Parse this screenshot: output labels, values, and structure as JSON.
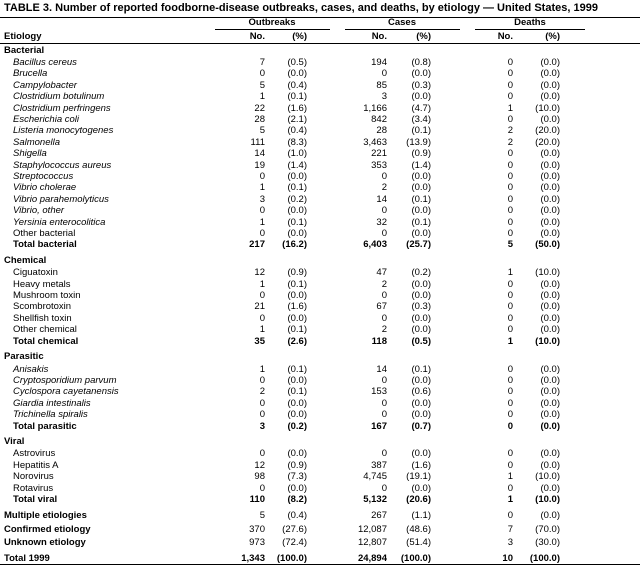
{
  "title": "TABLE 3. Number of reported foodborne-disease outbreaks, cases, and deaths, by etiology — United States, 1999",
  "header": {
    "groups": [
      "Outbreaks",
      "Cases",
      "Deaths"
    ],
    "columns": [
      "Etiology",
      "No.",
      "(%)",
      "No.",
      "(%)",
      "No.",
      "(%)"
    ]
  },
  "sections": [
    {
      "title": "Bacterial",
      "rows": [
        {
          "label": "Bacillus cereus",
          "italic": true,
          "cells": [
            "7",
            "(0.5)",
            "194",
            "(0.8)",
            "0",
            "(0.0)"
          ]
        },
        {
          "label": "Brucella",
          "italic": true,
          "cells": [
            "0",
            "(0.0)",
            "0",
            "(0.0)",
            "0",
            "(0.0)"
          ]
        },
        {
          "label": "Campylobacter",
          "italic": true,
          "cells": [
            "5",
            "(0.4)",
            "85",
            "(0.3)",
            "0",
            "(0.0)"
          ]
        },
        {
          "label": "Clostridium botulinum",
          "italic": true,
          "cells": [
            "1",
            "(0.1)",
            "3",
            "(0.0)",
            "0",
            "(0.0)"
          ]
        },
        {
          "label": "Clostridium perfringens",
          "italic": true,
          "cells": [
            "22",
            "(1.6)",
            "1,166",
            "(4.7)",
            "1",
            "(10.0)"
          ]
        },
        {
          "label": "Escherichia coli",
          "italic": true,
          "cells": [
            "28",
            "(2.1)",
            "842",
            "(3.4)",
            "0",
            "(0.0)"
          ]
        },
        {
          "label": "Listeria monocytogenes",
          "italic": true,
          "cells": [
            "5",
            "(0.4)",
            "28",
            "(0.1)",
            "2",
            "(20.0)"
          ]
        },
        {
          "label": "Salmonella",
          "italic": true,
          "cells": [
            "111",
            "(8.3)",
            "3,463",
            "(13.9)",
            "2",
            "(20.0)"
          ]
        },
        {
          "label": "Shigella",
          "italic": true,
          "cells": [
            "14",
            "(1.0)",
            "221",
            "(0.9)",
            "0",
            "(0.0)"
          ]
        },
        {
          "label": "Staphylococcus aureus",
          "italic": true,
          "cells": [
            "19",
            "(1.4)",
            "353",
            "(1.4)",
            "0",
            "(0.0)"
          ]
        },
        {
          "label": "Streptococcus",
          "italic": true,
          "cells": [
            "0",
            "(0.0)",
            "0",
            "(0.0)",
            "0",
            "(0.0)"
          ]
        },
        {
          "label": "Vibrio cholerae",
          "italic": true,
          "cells": [
            "1",
            "(0.1)",
            "2",
            "(0.0)",
            "0",
            "(0.0)"
          ]
        },
        {
          "label": "Vibrio parahemolyticus",
          "italic": true,
          "cells": [
            "3",
            "(0.2)",
            "14",
            "(0.1)",
            "0",
            "(0.0)"
          ]
        },
        {
          "label": "Vibrio, other",
          "italic": true,
          "cells": [
            "0",
            "(0.0)",
            "0",
            "(0.0)",
            "0",
            "(0.0)"
          ]
        },
        {
          "label": "Yersinia enterocolitica",
          "italic": true,
          "cells": [
            "1",
            "(0.1)",
            "32",
            "(0.1)",
            "0",
            "(0.0)"
          ]
        },
        {
          "label": "Other bacterial",
          "cells": [
            "0",
            "(0.0)",
            "0",
            "(0.0)",
            "0",
            "(0.0)"
          ]
        }
      ],
      "total": {
        "label": "Total bacterial",
        "cells": [
          "217",
          "(16.2)",
          "6,403",
          "(25.7)",
          "5",
          "(50.0)"
        ]
      }
    },
    {
      "title": "Chemical",
      "rows": [
        {
          "label": "Ciguatoxin",
          "cells": [
            "12",
            "(0.9)",
            "47",
            "(0.2)",
            "1",
            "(10.0)"
          ]
        },
        {
          "label": "Heavy metals",
          "cells": [
            "1",
            "(0.1)",
            "2",
            "(0.0)",
            "0",
            "(0.0)"
          ]
        },
        {
          "label": "Mushroom toxin",
          "cells": [
            "0",
            "(0.0)",
            "0",
            "(0.0)",
            "0",
            "(0.0)"
          ]
        },
        {
          "label": "Scombrotoxin",
          "cells": [
            "21",
            "(1.6)",
            "67",
            "(0.3)",
            "0",
            "(0.0)"
          ]
        },
        {
          "label": "Shellfish toxin",
          "cells": [
            "0",
            "(0.0)",
            "0",
            "(0.0)",
            "0",
            "(0.0)"
          ]
        },
        {
          "label": "Other chemical",
          "cells": [
            "1",
            "(0.1)",
            "2",
            "(0.0)",
            "0",
            "(0.0)"
          ]
        }
      ],
      "total": {
        "label": "Total chemical",
        "cells": [
          "35",
          "(2.6)",
          "118",
          "(0.5)",
          "1",
          "(10.0)"
        ]
      }
    },
    {
      "title": "Parasitic",
      "rows": [
        {
          "label": "Anisakis",
          "italic": true,
          "cells": [
            "1",
            "(0.1)",
            "14",
            "(0.1)",
            "0",
            "(0.0)"
          ]
        },
        {
          "label": "Cryptosporidium parvum",
          "italic": true,
          "cells": [
            "0",
            "(0.0)",
            "0",
            "(0.0)",
            "0",
            "(0.0)"
          ]
        },
        {
          "label": "Cyclospora cayetanensis",
          "italic": true,
          "cells": [
            "2",
            "(0.1)",
            "153",
            "(0.6)",
            "0",
            "(0.0)"
          ]
        },
        {
          "label": "Giardia intestinalis",
          "italic": true,
          "cells": [
            "0",
            "(0.0)",
            "0",
            "(0.0)",
            "0",
            "(0.0)"
          ]
        },
        {
          "label": "Trichinella spiralis",
          "italic": true,
          "cells": [
            "0",
            "(0.0)",
            "0",
            "(0.0)",
            "0",
            "(0.0)"
          ]
        }
      ],
      "total": {
        "label": "Total parasitic",
        "cells": [
          "3",
          "(0.2)",
          "167",
          "(0.7)",
          "0",
          "(0.0)"
        ]
      }
    },
    {
      "title": "Viral",
      "rows": [
        {
          "label": "Astrovirus",
          "cells": [
            "0",
            "(0.0)",
            "0",
            "(0.0)",
            "0",
            "(0.0)"
          ]
        },
        {
          "label": "Hepatitis A",
          "cells": [
            "12",
            "(0.9)",
            "387",
            "(1.6)",
            "0",
            "(0.0)"
          ]
        },
        {
          "label": "Norovirus",
          "cells": [
            "98",
            "(7.3)",
            "4,745",
            "(19.1)",
            "1",
            "(10.0)"
          ]
        },
        {
          "label": "Rotavirus",
          "cells": [
            "0",
            "(0.0)",
            "0",
            "(0.0)",
            "0",
            "(0.0)"
          ]
        }
      ],
      "total": {
        "label": "Total viral",
        "cells": [
          "110",
          "(8.2)",
          "5,132",
          "(20.6)",
          "1",
          "(10.0)"
        ]
      }
    }
  ],
  "summary": [
    {
      "label": "Multiple etiologies",
      "cells": [
        "5",
        "(0.4)",
        "267",
        "(1.1)",
        "0",
        "(0.0)"
      ]
    },
    {
      "label": "Confirmed etiology",
      "cells": [
        "370",
        "(27.6)",
        "12,087",
        "(48.6)",
        "7",
        "(70.0)"
      ]
    },
    {
      "label": "Unknown etiology",
      "cells": [
        "973",
        "(72.4)",
        "12,807",
        "(51.4)",
        "3",
        "(30.0)"
      ]
    }
  ],
  "grand_total": {
    "label": "Total 1999",
    "cells": [
      "1,343",
      "(100.0)",
      "24,894",
      "(100.0)",
      "10",
      "(100.0)"
    ]
  }
}
